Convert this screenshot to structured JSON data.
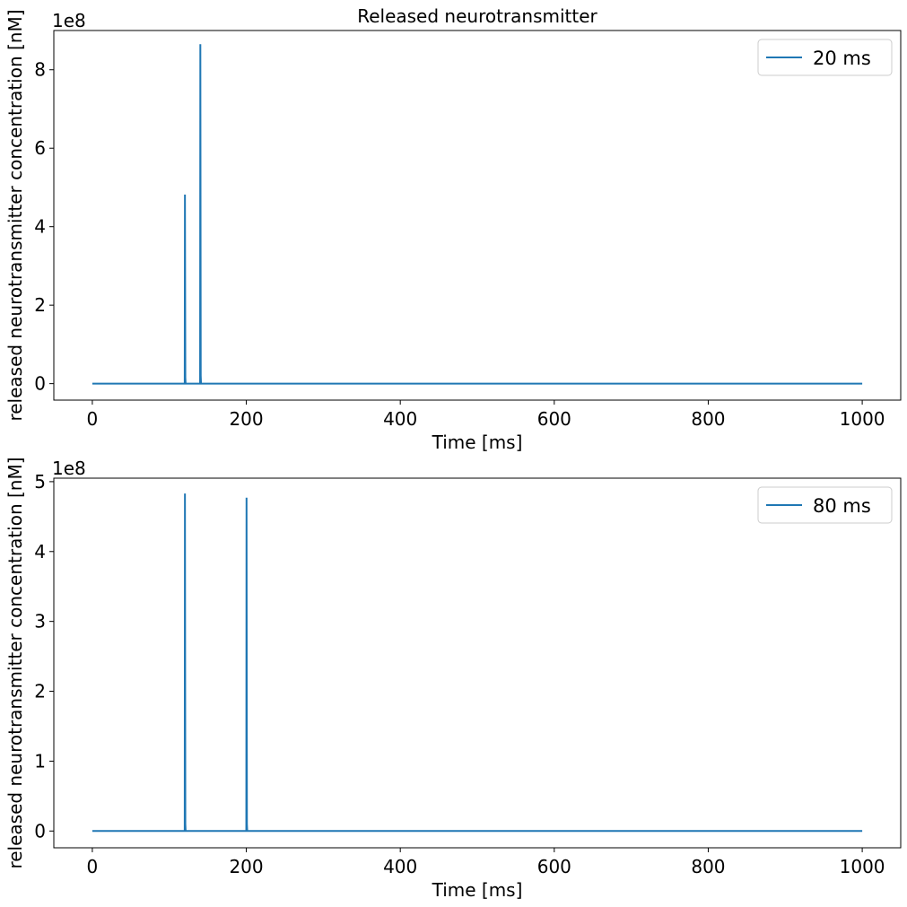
{
  "chart_data": [
    {
      "type": "line",
      "title": "Released neurotransmitter",
      "xlabel": "Time [ms]",
      "ylabel": "released neurotransmitter concentration [nM]",
      "offset_text": "1e8",
      "xlim": [
        -50,
        1050
      ],
      "ylim": [
        -0.42,
        9.0
      ],
      "xticks": [
        0,
        200,
        400,
        600,
        800,
        1000
      ],
      "yticks": [
        0,
        2,
        4,
        6,
        8
      ],
      "legend": "top-right",
      "grid": false,
      "color": "#1f77b4",
      "series": [
        {
          "name": "20 ms",
          "x": [
            0,
            120,
            120.3,
            120.8,
            121.2,
            140,
            140.3,
            140.8,
            141.2,
            1000
          ],
          "y": [
            0,
            0,
            4.82,
            0.15,
            0,
            0,
            8.65,
            0.2,
            0,
            0
          ]
        }
      ]
    },
    {
      "type": "line",
      "title": "",
      "xlabel": "Time [ms]",
      "ylabel": "released neurotransmitter concentration [nM]",
      "offset_text": "1e8",
      "xlim": [
        -50,
        1050
      ],
      "ylim": [
        -0.24,
        5.05
      ],
      "xticks": [
        0,
        200,
        400,
        600,
        800,
        1000
      ],
      "yticks": [
        0,
        1,
        2,
        3,
        4,
        5
      ],
      "legend": "top-right",
      "grid": false,
      "color": "#1f77b4",
      "series": [
        {
          "name": "80 ms",
          "x": [
            0,
            120,
            120.3,
            120.8,
            121.2,
            200,
            200.3,
            200.8,
            201.2,
            1000
          ],
          "y": [
            0,
            0,
            4.83,
            0.1,
            0,
            0,
            4.77,
            0.1,
            0,
            0
          ]
        }
      ]
    }
  ]
}
